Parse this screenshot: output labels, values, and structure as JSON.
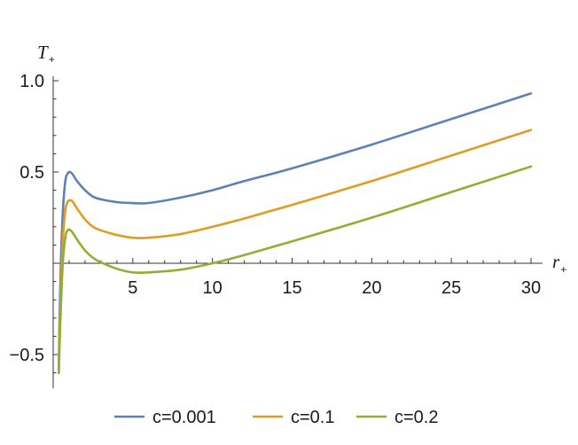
{
  "chart_data": {
    "type": "line",
    "xlabel": "r",
    "xlabel_sub": "+",
    "ylabel": "T",
    "ylabel_sub": "+",
    "xlim": [
      0,
      30
    ],
    "ylim": [
      -0.6,
      1.0
    ],
    "x_ticks": [
      5,
      10,
      15,
      20,
      25,
      30
    ],
    "x_tick_labels": [
      "5",
      "10",
      "15",
      "20",
      "25",
      "30"
    ],
    "y_ticks": [
      -0.5,
      0.5,
      1.0
    ],
    "y_tick_labels": [
      "-0.5",
      "0.5",
      "1.0"
    ],
    "grid": false,
    "legend_position": "bottom",
    "series": [
      {
        "name": "c=0.001",
        "color": "#5e81b5",
        "x": [
          0.35,
          0.4,
          0.5,
          0.6,
          0.7,
          0.8,
          0.9,
          1.0,
          1.2,
          1.5,
          2.0,
          2.5,
          3.0,
          4.0,
          5.0,
          6.0,
          8.0,
          10.0,
          12.0,
          15.0,
          20.0,
          25.0,
          30.0
        ],
        "y": [
          -0.6,
          -0.3,
          0.05,
          0.27,
          0.4,
          0.47,
          0.49,
          0.5,
          0.49,
          0.45,
          0.4,
          0.365,
          0.35,
          0.335,
          0.33,
          0.33,
          0.36,
          0.4,
          0.45,
          0.52,
          0.65,
          0.79,
          0.93
        ]
      },
      {
        "name": "c=0.1",
        "color": "#e19c24",
        "x": [
          0.35,
          0.4,
          0.5,
          0.6,
          0.7,
          0.8,
          0.9,
          1.0,
          1.2,
          1.5,
          2.0,
          2.5,
          3.0,
          4.0,
          5.0,
          6.0,
          8.0,
          10.0,
          12.0,
          15.0,
          20.0,
          25.0,
          30.0
        ],
        "y": [
          -0.6,
          -0.4,
          -0.1,
          0.12,
          0.24,
          0.31,
          0.335,
          0.345,
          0.34,
          0.3,
          0.24,
          0.2,
          0.18,
          0.155,
          0.14,
          0.14,
          0.16,
          0.2,
          0.245,
          0.32,
          0.45,
          0.59,
          0.73
        ]
      },
      {
        "name": "c=0.2",
        "color": "#8fb032",
        "x": [
          0.35,
          0.4,
          0.5,
          0.6,
          0.7,
          0.8,
          0.9,
          1.0,
          1.2,
          1.5,
          2.0,
          2.5,
          3.0,
          4.0,
          5.0,
          6.0,
          8.0,
          10.0,
          12.0,
          15.0,
          20.0,
          25.0,
          30.0
        ],
        "y": [
          -0.6,
          -0.45,
          -0.2,
          0.0,
          0.1,
          0.16,
          0.18,
          0.185,
          0.17,
          0.13,
          0.07,
          0.03,
          0.005,
          -0.03,
          -0.05,
          -0.05,
          -0.035,
          0.0,
          0.045,
          0.12,
          0.25,
          0.39,
          0.53
        ]
      }
    ]
  }
}
